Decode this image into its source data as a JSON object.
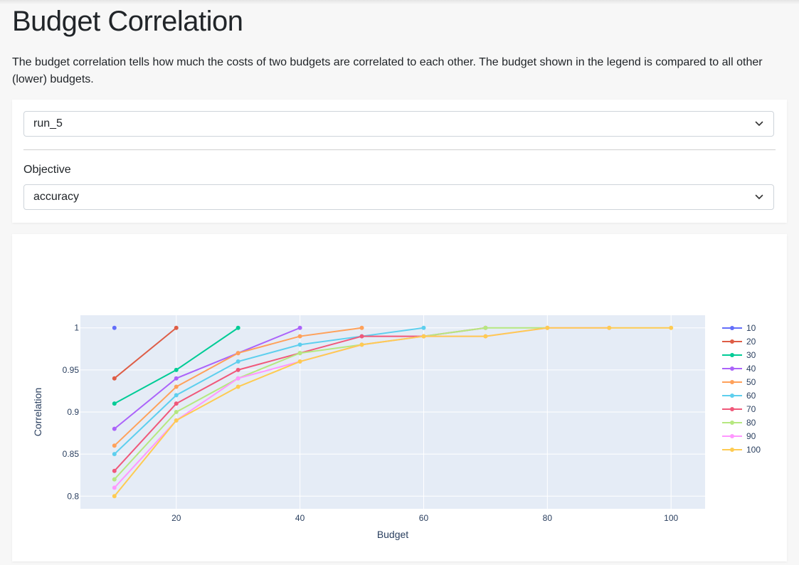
{
  "page": {
    "title": "Budget Correlation",
    "description": "The budget correlation tells how much the costs of two budgets are correlated to each other. The budget shown in the legend is compared to all other (lower) budgets."
  },
  "controls": {
    "run_select": {
      "value": "run_5",
      "icon": "chevron-down-icon"
    },
    "objective_label": "Objective",
    "objective_select": {
      "value": "accuracy",
      "icon": "chevron-down-icon"
    }
  },
  "colors": {
    "plot_bg": "#e5ecf6",
    "grid": "#ffffff",
    "axis_text": "#2a3f5f"
  },
  "chart_data": {
    "type": "line",
    "title": "",
    "xlabel": "Budget",
    "ylabel": "Correlation",
    "xlim": [
      4.5,
      105.5
    ],
    "ylim": [
      0.785,
      1.015
    ],
    "xticks": [
      20,
      40,
      60,
      80,
      100
    ],
    "yticks": [
      0.8,
      0.85,
      0.9,
      0.95,
      1
    ],
    "grid": true,
    "legend_position": "right",
    "series": [
      {
        "name": "10",
        "color": "#636efa",
        "x": [
          10
        ],
        "y": [
          1
        ]
      },
      {
        "name": "20",
        "color": "#de5d46",
        "x": [
          10,
          20
        ],
        "y": [
          0.94,
          1
        ]
      },
      {
        "name": "30",
        "color": "#00cc96",
        "x": [
          10,
          20,
          30
        ],
        "y": [
          0.91,
          0.95,
          1
        ]
      },
      {
        "name": "40",
        "color": "#ab63fa",
        "x": [
          10,
          20,
          30,
          40
        ],
        "y": [
          0.88,
          0.94,
          0.97,
          1
        ]
      },
      {
        "name": "50",
        "color": "#ffa15a",
        "x": [
          10,
          20,
          30,
          40,
          50
        ],
        "y": [
          0.86,
          0.93,
          0.97,
          0.99,
          1
        ]
      },
      {
        "name": "60",
        "color": "#5ecfee",
        "x": [
          10,
          20,
          30,
          40,
          50,
          60
        ],
        "y": [
          0.85,
          0.92,
          0.96,
          0.98,
          0.99,
          1
        ]
      },
      {
        "name": "70",
        "color": "#f0587a",
        "x": [
          10,
          20,
          30,
          40,
          50,
          60,
          70
        ],
        "y": [
          0.83,
          0.91,
          0.95,
          0.97,
          0.99,
          0.99,
          1
        ]
      },
      {
        "name": "80",
        "color": "#b6e880",
        "x": [
          10,
          20,
          30,
          40,
          50,
          60,
          70,
          80
        ],
        "y": [
          0.82,
          0.9,
          0.94,
          0.97,
          0.98,
          0.99,
          1,
          1
        ]
      },
      {
        "name": "90",
        "color": "#ff97ff",
        "x": [
          10,
          20,
          30,
          40,
          50,
          60,
          70,
          80,
          90
        ],
        "y": [
          0.81,
          0.89,
          0.94,
          0.96,
          0.98,
          0.99,
          0.99,
          1,
          1
        ]
      },
      {
        "name": "100",
        "color": "#fecb52",
        "x": [
          10,
          20,
          30,
          40,
          50,
          60,
          70,
          80,
          90,
          100
        ],
        "y": [
          0.8,
          0.89,
          0.93,
          0.96,
          0.98,
          0.99,
          0.99,
          1,
          1,
          1
        ]
      }
    ]
  }
}
